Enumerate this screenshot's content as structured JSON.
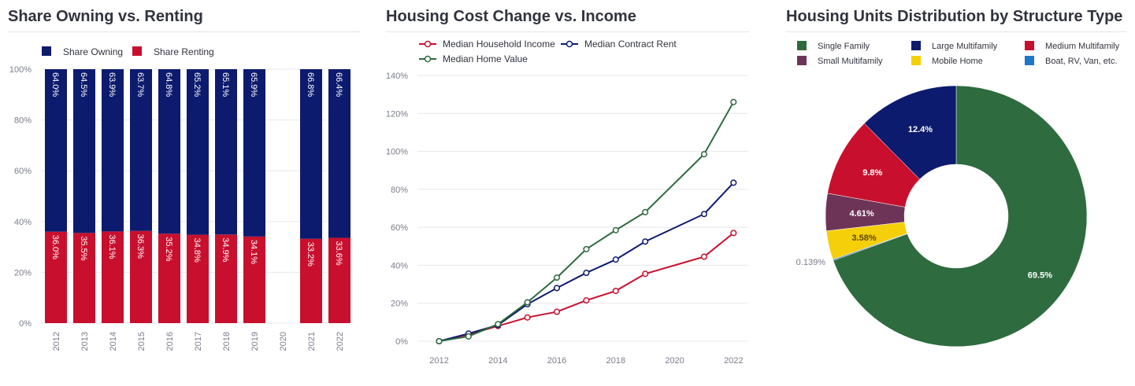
{
  "colors": {
    "owning": "#0d1b6e",
    "renting": "#c8102e",
    "income": "#c8102e",
    "rent": "#0d1b6e",
    "home_value": "#2e6b3e",
    "single_family": "#2e6b3e",
    "large_multifamily": "#0d1b6e",
    "medium_multifamily": "#c8102e",
    "small_multifamily": "#6e3457",
    "mobile_home": "#f5cf0a",
    "boat_rv": "#1f77c8",
    "grid": "#e8e8ec",
    "axis_text": "#7a7d8c"
  },
  "panels": {
    "tenure_title": "Share Owning vs. Renting",
    "cost_title": "Housing Cost Change vs. Income",
    "units_title": "Housing Units Distribution by Structure Type"
  },
  "chart_data": [
    {
      "type": "bar",
      "stacked": true,
      "title": "Share Owning vs. Renting",
      "categories": [
        "2012",
        "2013",
        "2014",
        "2015",
        "2016",
        "2017",
        "2018",
        "2019",
        "2020",
        "2021",
        "2022"
      ],
      "series": [
        {
          "name": "Share Owning",
          "values": [
            64.0,
            64.5,
            63.9,
            63.7,
            64.8,
            65.2,
            65.1,
            65.9,
            null,
            66.8,
            66.4
          ],
          "labels": [
            "64.0%",
            "64.5%",
            "63.9%",
            "63.7%",
            "64.8%",
            "65.2%",
            "65.1%",
            "65.9%",
            "",
            "66.8%",
            "66.4%"
          ]
        },
        {
          "name": "Share Renting",
          "values": [
            36.0,
            35.5,
            36.1,
            36.3,
            35.2,
            34.8,
            34.9,
            34.1,
            null,
            33.2,
            33.6
          ],
          "labels": [
            "36.0%",
            "35.5%",
            "36.1%",
            "36.3%",
            "35.2%",
            "34.8%",
            "34.9%",
            "34.1%",
            "",
            "33.2%",
            "33.6%"
          ]
        }
      ],
      "ylim": [
        0,
        100
      ],
      "yticks": [
        0,
        20,
        40,
        60,
        80,
        100
      ],
      "ytick_labels": [
        "0%",
        "20%",
        "40%",
        "60%",
        "80%",
        "100%"
      ],
      "legend": "top-left",
      "grid": true
    },
    {
      "type": "line",
      "title": "Housing Cost Change vs. Income",
      "series": [
        {
          "name": "Median Household Income",
          "x": [
            2012,
            2013,
            2014,
            2015,
            2016,
            2017,
            2018,
            2019,
            2021,
            2022
          ],
          "values": [
            0,
            3.5,
            8,
            12.5,
            15.5,
            21.5,
            26.5,
            35.5,
            44.5,
            57
          ]
        },
        {
          "name": "Median Contract Rent",
          "x": [
            2012,
            2013,
            2014,
            2015,
            2016,
            2017,
            2018,
            2019,
            2021,
            2022
          ],
          "values": [
            0,
            4,
            8.5,
            19.5,
            28,
            36,
            43,
            52.5,
            67,
            83.5
          ]
        },
        {
          "name": "Median Home Value",
          "x": [
            2012,
            2013,
            2014,
            2015,
            2016,
            2017,
            2018,
            2019,
            2021,
            2022
          ],
          "values": [
            0,
            2.5,
            9,
            20.5,
            33.5,
            48.5,
            58.5,
            68,
            98.5,
            126
          ]
        }
      ],
      "xlim": [
        2011.8,
        2022.5
      ],
      "xticks": [
        2012,
        2014,
        2016,
        2018,
        2020,
        2022
      ],
      "xtick_labels": [
        "2012",
        "2014",
        "2016",
        "2018",
        "2020",
        "2022"
      ],
      "ylim": [
        0,
        140
      ],
      "yticks": [
        0,
        20,
        40,
        60,
        80,
        100,
        120,
        140
      ],
      "ytick_labels": [
        "0%",
        "20%",
        "40%",
        "60%",
        "80%",
        "100%",
        "120%",
        "140%"
      ],
      "legend": "top-left",
      "grid": true
    },
    {
      "type": "pie",
      "donut": true,
      "title": "Housing Units Distribution by Structure Type",
      "slices": [
        {
          "name": "Single Family",
          "value": 69.5,
          "label": "69.5%"
        },
        {
          "name": "Boat, RV, Van, etc.",
          "value": 0.139,
          "label": "0.139%"
        },
        {
          "name": "Mobile Home",
          "value": 3.58,
          "label": "3.58%"
        },
        {
          "name": "Small Multifamily",
          "value": 4.61,
          "label": "4.61%"
        },
        {
          "name": "Medium Multifamily",
          "value": 9.8,
          "label": "9.8%"
        },
        {
          "name": "Large Multifamily",
          "value": 12.4,
          "label": "12.4%"
        }
      ],
      "legend": [
        {
          "name": "Single Family"
        },
        {
          "name": "Large Multifamily"
        },
        {
          "name": "Medium Multifamily"
        },
        {
          "name": "Small Multifamily"
        },
        {
          "name": "Mobile Home"
        },
        {
          "name": "Boat, RV, Van, etc."
        }
      ]
    }
  ]
}
